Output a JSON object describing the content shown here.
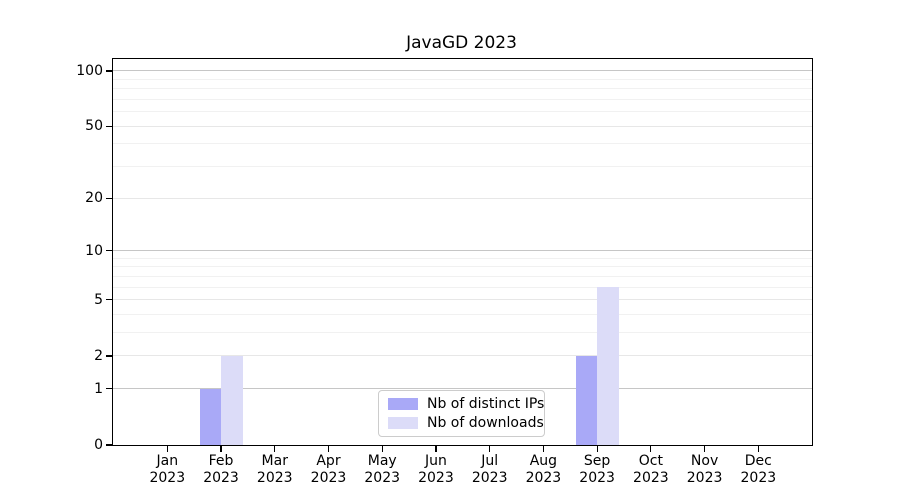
{
  "title": "JavaGD 2023",
  "chart_data": {
    "type": "bar",
    "title": "JavaGD 2023",
    "xlabel": "",
    "ylabel": "",
    "categories": [
      "Jan 2023",
      "Feb 2023",
      "Mar 2023",
      "Apr 2023",
      "May 2023",
      "Jun 2023",
      "Jul 2023",
      "Aug 2023",
      "Sep 2023",
      "Oct 2023",
      "Nov 2023",
      "Dec 2023"
    ],
    "series": [
      {
        "name": "Nb of distinct IPs",
        "color": "#a9a9f7",
        "values": [
          0,
          1,
          0,
          0,
          0,
          0,
          0,
          0,
          2,
          0,
          0,
          0
        ]
      },
      {
        "name": "Nb of downloads",
        "color": "#dcdcf8",
        "values": [
          0,
          2,
          0,
          0,
          0,
          0,
          0,
          0,
          6,
          0,
          0,
          0
        ]
      }
    ],
    "yscale": "log1p",
    "yticks": [
      0,
      1,
      2,
      5,
      10,
      20,
      50,
      100
    ],
    "strong_grid_yticks": [
      1,
      10,
      100
    ],
    "minor_yticks": [
      3,
      4,
      6,
      7,
      8,
      9,
      30,
      40,
      60,
      70,
      80,
      90
    ],
    "ylim": [
      0,
      116
    ],
    "grid": true,
    "legend_position": "bottom-center"
  },
  "colors": {
    "background": "#ffffff",
    "axis": "#000000",
    "strong_grid": "#c6c6c6",
    "major_grid": "#e7e7e7",
    "minor_grid": "#f1f1f1",
    "legend_border": "#cccccc"
  }
}
